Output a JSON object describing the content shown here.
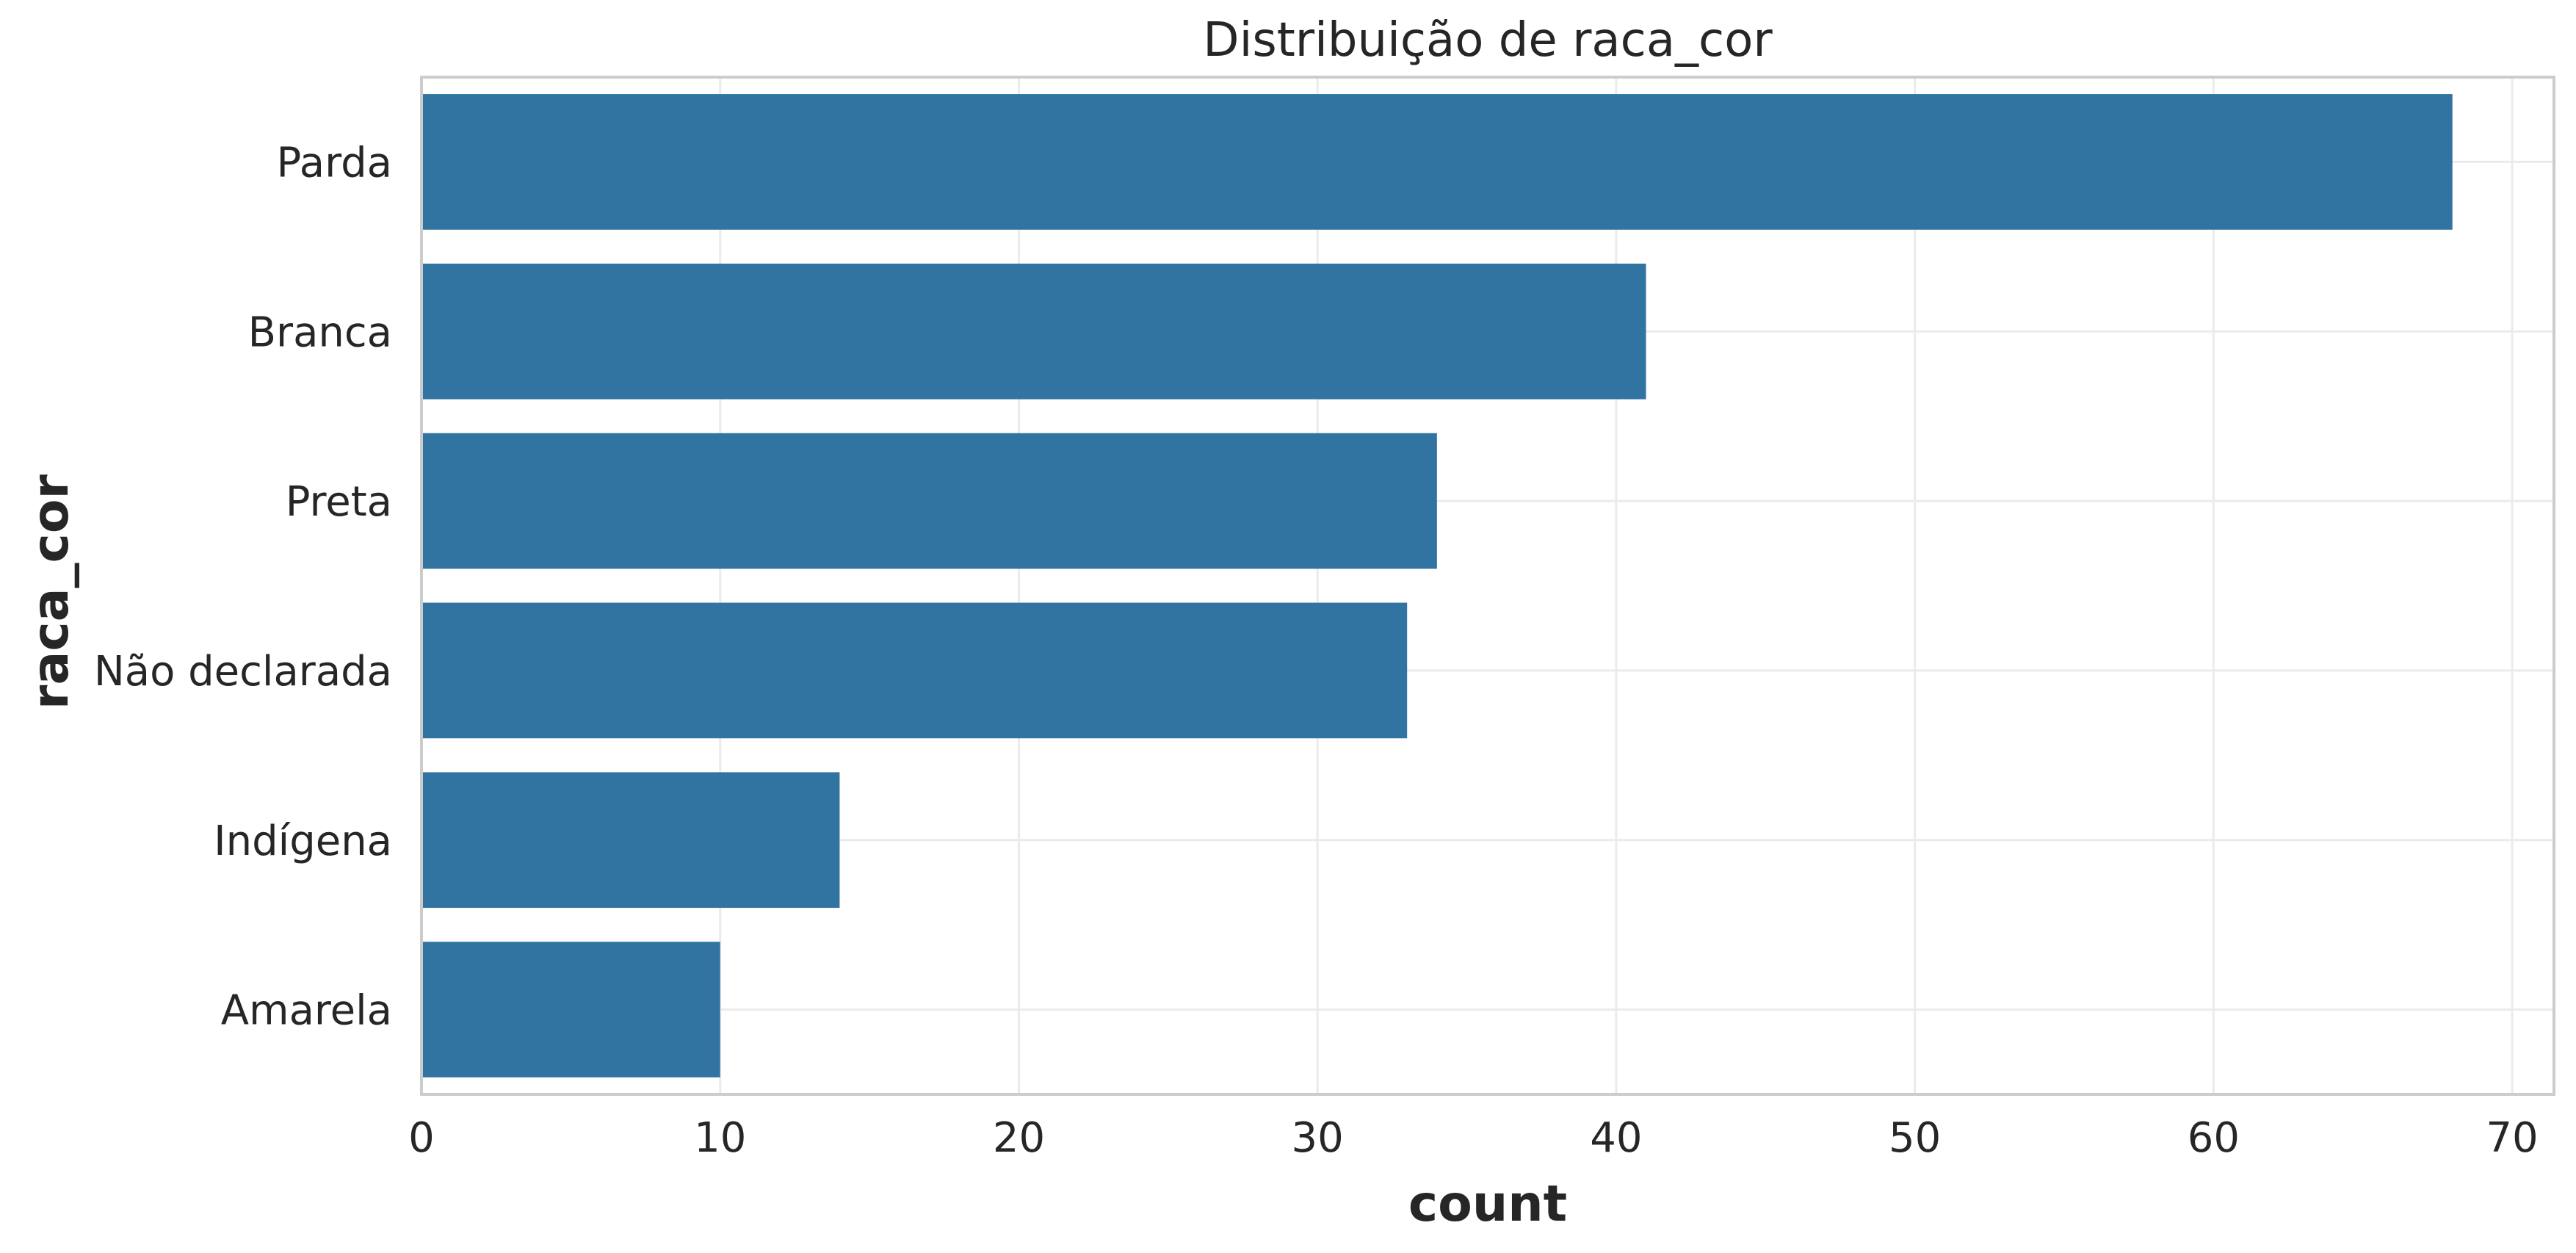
{
  "chart_data": {
    "type": "bar",
    "orientation": "horizontal",
    "title": "Distribuição de raca_cor",
    "xlabel": "count",
    "ylabel": "raca_cor",
    "categories": [
      "Parda",
      "Branca",
      "Preta",
      "Não declarada",
      "Indígena",
      "Amarela"
    ],
    "values": [
      68,
      41,
      34,
      33,
      14,
      10
    ],
    "xlim": [
      0,
      71.4
    ],
    "xticks": [
      0,
      10,
      20,
      30,
      40,
      50,
      60,
      70
    ],
    "grid": true,
    "bar_color": "#3274a1",
    "grid_color": "#ebebeb",
    "spine_color": "#cccccc"
  }
}
